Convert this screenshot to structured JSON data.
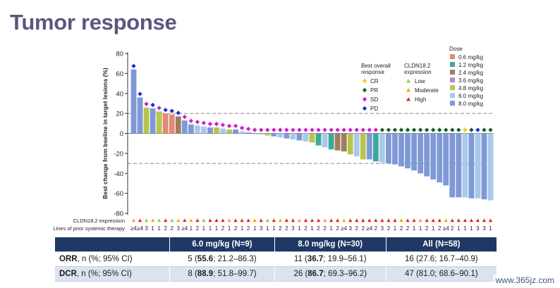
{
  "slide": {
    "title": "Tumor response"
  },
  "chart_data": {
    "type": "bar",
    "title": "",
    "ylabel": "Best change from bseline in target lesions (%)",
    "ylim": [
      -80,
      80
    ],
    "yticks": [
      "80",
      "60",
      "40",
      "20",
      "0",
      "-20",
      "-40",
      "-60",
      "-80"
    ],
    "reference_lines": [
      20,
      -30
    ],
    "colors": {
      "dose": {
        "0.6 mg/kg": "#e08b74",
        "1.2 mg/kg": "#3fa89a",
        "2.4 mg/kg": "#9c7e62",
        "3.6 mg/kg": "#b58bd0",
        "4.8 mg/kg": "#b9c44e",
        "6.0 mg/kg": "#a9c9ea",
        "8.0 mg/kg": "#7f98d6"
      },
      "response": {
        "CR": "#f2cf1f",
        "PR": "#16632c",
        "SD": "#cc22cc",
        "PD": "#1d2fd8"
      },
      "expression": {
        "Low": "#9ccc2c",
        "Moderate": "#f2a51f",
        "High": "#e2231a"
      }
    },
    "legend": {
      "placement": "top-right",
      "response_title_1": "Best overall",
      "response_title_2": "response",
      "expression_title_1": "CLDN18.2",
      "expression_title_2": "expression",
      "dose_title": "Dose",
      "response": [
        "CR",
        "PR",
        "SD",
        "PD"
      ],
      "expression": [
        "Low",
        "Moderate",
        "High"
      ],
      "dose": [
        "0.6 mg/kg",
        "1.2 mg/kg",
        "2.4 mg/kg",
        "3.6 mg/kg",
        "4.8 mg/kg",
        "6.0 mg/kg",
        "8.0 mg/kg"
      ]
    },
    "row_labels": [
      "CLDN18.2 expression",
      "Lines of prior systemic therapy"
    ],
    "series": [
      {
        "value": 64,
        "dose": "8.0 mg/kg",
        "response": "PD",
        "expression": "Moderate",
        "lines": "≥4"
      },
      {
        "value": 36,
        "dose": "8.0 mg/kg",
        "response": "PD",
        "expression": "High",
        "lines": "≥4"
      },
      {
        "value": 26,
        "dose": "4.8 mg/kg",
        "response": "SD",
        "expression": "Low",
        "lines": "3"
      },
      {
        "value": 25,
        "dose": "8.0 mg/kg",
        "response": "PD",
        "expression": "Moderate",
        "lines": "1"
      },
      {
        "value": 22,
        "dose": "4.8 mg/kg",
        "response": "SD",
        "expression": "Low",
        "lines": "1"
      },
      {
        "value": 20,
        "dose": "0.6 mg/kg",
        "response": "PD",
        "expression": "High",
        "lines": "2"
      },
      {
        "value": 19,
        "dose": "0.6 mg/kg",
        "response": "PD",
        "expression": "Low",
        "lines": "2"
      },
      {
        "value": 17,
        "dose": "2.4 mg/kg",
        "response": "PD",
        "expression": "Moderate",
        "lines": "3"
      },
      {
        "value": 13,
        "dose": "8.0 mg/kg",
        "response": "SD",
        "expression": "High",
        "lines": "≥4"
      },
      {
        "value": 9,
        "dose": "8.0 mg/kg",
        "response": "SD",
        "expression": "Moderate",
        "lines": "1"
      },
      {
        "value": 8,
        "dose": "6.0 mg/kg",
        "response": "SD",
        "expression": "High",
        "lines": "2"
      },
      {
        "value": 7,
        "dose": "6.0 mg/kg",
        "response": "SD",
        "expression": "Low",
        "lines": "1"
      },
      {
        "value": 6,
        "dose": "8.0 mg/kg",
        "response": "SD",
        "expression": "High",
        "lines": "1"
      },
      {
        "value": 6,
        "dose": "4.8 mg/kg",
        "response": "SD",
        "expression": "High",
        "lines": "1"
      },
      {
        "value": 5,
        "dose": "6.0 mg/kg",
        "response": "SD",
        "expression": "High",
        "lines": "2"
      },
      {
        "value": 4,
        "dose": "4.8 mg/kg",
        "response": "SD",
        "expression": "Moderate",
        "lines": "1"
      },
      {
        "value": 4,
        "dose": "8.0 mg/kg",
        "response": "SD",
        "expression": "High",
        "lines": "2"
      },
      {
        "value": 2,
        "dose": "6.0 mg/kg",
        "response": "SD",
        "expression": "High",
        "lines": "1"
      },
      {
        "value": 1,
        "dose": "8.0 mg/kg",
        "response": "SD",
        "expression": "High",
        "lines": "2"
      },
      {
        "value": 0,
        "dose": "8.0 mg/kg",
        "response": "SD",
        "expression": "Moderate",
        "lines": "1"
      },
      {
        "value": -1,
        "dose": "6.0 mg/kg",
        "response": "SD",
        "expression": "High",
        "lines": "3"
      },
      {
        "value": -2,
        "dose": "4.8 mg/kg",
        "response": "SD",
        "expression": "Low",
        "lines": "1"
      },
      {
        "value": -3,
        "dose": "8.0 mg/kg",
        "response": "SD",
        "expression": "High",
        "lines": "1"
      },
      {
        "value": -4,
        "dose": "6.0 mg/kg",
        "response": "SD",
        "expression": "Moderate",
        "lines": "2"
      },
      {
        "value": -5,
        "dose": "8.0 mg/kg",
        "response": "SD",
        "expression": "High",
        "lines": "2"
      },
      {
        "value": -6,
        "dose": "6.0 mg/kg",
        "response": "SD",
        "expression": "High",
        "lines": "3"
      },
      {
        "value": -7,
        "dose": "8.0 mg/kg",
        "response": "SD",
        "expression": "Moderate",
        "lines": "1"
      },
      {
        "value": -8,
        "dose": "6.0 mg/kg",
        "response": "SD",
        "expression": "High",
        "lines": "2"
      },
      {
        "value": -9,
        "dose": "4.8 mg/kg",
        "response": "SD",
        "expression": "High",
        "lines": "1"
      },
      {
        "value": -12,
        "dose": "1.2 mg/kg",
        "response": "SD",
        "expression": "High",
        "lines": "2"
      },
      {
        "value": -14,
        "dose": "6.0 mg/kg",
        "response": "SD",
        "expression": "Moderate",
        "lines": "2"
      },
      {
        "value": -16,
        "dose": "1.2 mg/kg",
        "response": "SD",
        "expression": "High",
        "lines": "1"
      },
      {
        "value": -17,
        "dose": "2.4 mg/kg",
        "response": "SD",
        "expression": "High",
        "lines": "2"
      },
      {
        "value": -18,
        "dose": "2.4 mg/kg",
        "response": "SD",
        "expression": "Moderate",
        "lines": "≥4"
      },
      {
        "value": -21,
        "dose": "4.8 mg/kg",
        "response": "SD",
        "expression": "High",
        "lines": "3"
      },
      {
        "value": -23,
        "dose": "6.0 mg/kg",
        "response": "SD",
        "expression": "High",
        "lines": "2"
      },
      {
        "value": -26,
        "dose": "4.8 mg/kg",
        "response": "SD",
        "expression": "High",
        "lines": "2"
      },
      {
        "value": -26,
        "dose": "8.0 mg/kg",
        "response": "SD",
        "expression": "High",
        "lines": "≥4"
      },
      {
        "value": -28,
        "dose": "1.2 mg/kg",
        "response": "SD",
        "expression": "High",
        "lines": "2"
      },
      {
        "value": -29,
        "dose": "6.0 mg/kg",
        "response": "PR",
        "expression": "High",
        "lines": "3"
      },
      {
        "value": -30,
        "dose": "8.0 mg/kg",
        "response": "PR",
        "expression": "High",
        "lines": "2"
      },
      {
        "value": -31,
        "dose": "8.0 mg/kg",
        "response": "PR",
        "expression": "High",
        "lines": "1"
      },
      {
        "value": -33,
        "dose": "8.0 mg/kg",
        "response": "PR",
        "expression": "Moderate",
        "lines": "2"
      },
      {
        "value": -35,
        "dose": "8.0 mg/kg",
        "response": "PR",
        "expression": "High",
        "lines": "2"
      },
      {
        "value": -37,
        "dose": "8.0 mg/kg",
        "response": "PR",
        "expression": "High",
        "lines": "1"
      },
      {
        "value": -40,
        "dose": "8.0 mg/kg",
        "response": "PR",
        "expression": "Moderate",
        "lines": "1"
      },
      {
        "value": -43,
        "dose": "8.0 mg/kg",
        "response": "PR",
        "expression": "High",
        "lines": "2"
      },
      {
        "value": -46,
        "dose": "8.0 mg/kg",
        "response": "PR",
        "expression": "High",
        "lines": "1"
      },
      {
        "value": -49,
        "dose": "8.0 mg/kg",
        "response": "PR",
        "expression": "High",
        "lines": "2"
      },
      {
        "value": -52,
        "dose": "8.0 mg/kg",
        "response": "PR",
        "expression": "Moderate",
        "lines": "≥4"
      },
      {
        "value": -64,
        "dose": "8.0 mg/kg",
        "response": "PR",
        "expression": "High",
        "lines": "2"
      },
      {
        "value": -64,
        "dose": "8.0 mg/kg",
        "response": "PR",
        "expression": "High",
        "lines": "1"
      },
      {
        "value": -64,
        "dose": "6.0 mg/kg",
        "response": "CR",
        "expression": "High",
        "lines": "1"
      },
      {
        "value": -65,
        "dose": "8.0 mg/kg",
        "response": "PR",
        "expression": "High",
        "lines": "1"
      },
      {
        "value": -65,
        "dose": "6.0 mg/kg",
        "response": "PD",
        "expression": "High",
        "lines": "3"
      },
      {
        "value": -66,
        "dose": "8.0 mg/kg",
        "response": "PR",
        "expression": "High",
        "lines": "3"
      },
      {
        "value": -67,
        "dose": "6.0 mg/kg",
        "response": "PR",
        "expression": "High",
        "lines": "1"
      }
    ]
  },
  "table": {
    "headers": [
      "",
      "6.0 mg/kg (N=9)",
      "8.0 mg/kg (N=30)",
      "All (N=58)"
    ],
    "rows": [
      {
        "label_bold": "ORR",
        "label_rest": ", n (%; 95% CI)",
        "cells": [
          {
            "pre": "5 (",
            "bold": "55.6",
            "post": "; 21.2–86.3)"
          },
          {
            "pre": "11 (",
            "bold": "36.7",
            "post": "; 19.9–56.1)"
          },
          {
            "pre": "16 (27.6; 16.7–40.9)",
            "bold": "",
            "post": ""
          }
        ]
      },
      {
        "label_bold": "DCR",
        "label_rest": ", n (%; 95% CI)",
        "cells": [
          {
            "pre": "8 (",
            "bold": "88.9",
            "post": "; 51.8–99.7)"
          },
          {
            "pre": "26 (",
            "bold": "86.7",
            "post": "; 69.3–96.2)"
          },
          {
            "pre": "47 (81.0; 68.6–90.1)",
            "bold": "",
            "post": ""
          }
        ]
      }
    ]
  },
  "watermark": "www.365jz.com"
}
